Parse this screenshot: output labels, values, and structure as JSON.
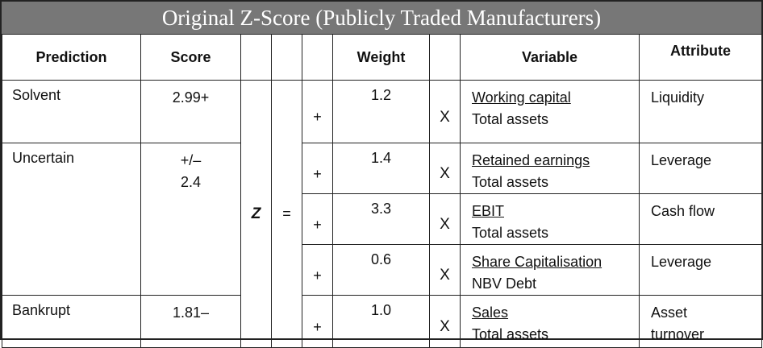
{
  "title": "Original Z-Score (Publicly Traded Manufacturers)",
  "headers": {
    "prediction": "Prediction",
    "score": "Score",
    "weight": "Weight",
    "variable": "Variable",
    "attribute": "Attribute"
  },
  "z_symbol": "Z",
  "equals": "=",
  "predictions": [
    {
      "label": "Solvent",
      "score_line1": "2.99+",
      "score_line2": ""
    },
    {
      "label": "Uncertain",
      "score_line1": "+/–",
      "score_line2": "2.4"
    },
    {
      "label": "Bankrupt",
      "score_line1": "1.81–",
      "score_line2": ""
    }
  ],
  "rows": [
    {
      "plus": "+",
      "weight": "1.2",
      "x": "X",
      "numerator": "Working capital",
      "denominator": "Total assets",
      "attribute_line1": "Liquidity",
      "attribute_line2": ""
    },
    {
      "plus": "+",
      "weight": "1.4",
      "x": "X",
      "numerator": "Retained earnings",
      "denominator": "Total assets",
      "attribute_line1": "Leverage",
      "attribute_line2": ""
    },
    {
      "plus": "+",
      "weight": "3.3",
      "x": "X",
      "numerator": "EBIT",
      "denominator": "Total assets",
      "attribute_line1": "Cash flow",
      "attribute_line2": ""
    },
    {
      "plus": "+",
      "weight": "0.6",
      "x": "X",
      "numerator": "Share Capitalisation",
      "denominator": "NBV Debt",
      "attribute_line1": "Leverage",
      "attribute_line2": ""
    },
    {
      "plus": "+",
      "weight": "1.0",
      "x": "X",
      "numerator": "Sales",
      "denominator": "Total assets",
      "attribute_line1": "Asset",
      "attribute_line2": "turnover"
    }
  ]
}
